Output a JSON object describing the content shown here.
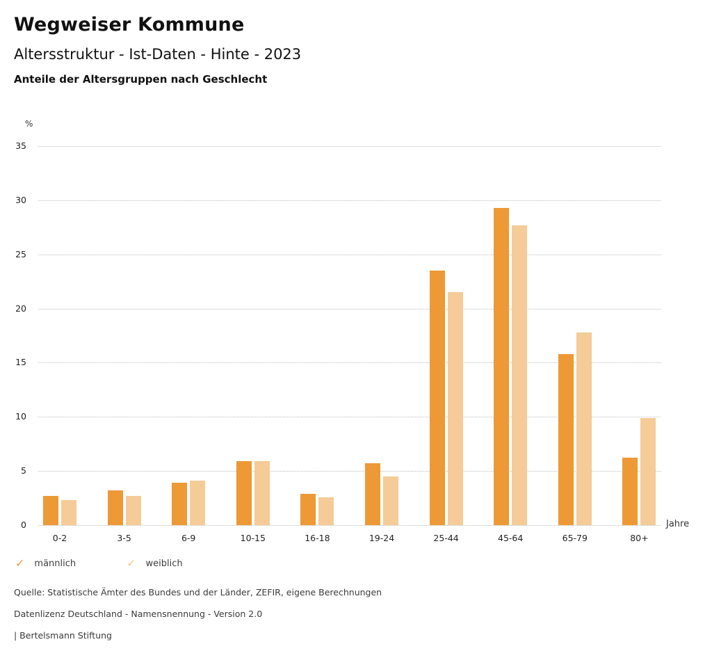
{
  "header": {
    "title": "Wegweiser Kommune",
    "subtitle": "Altersstruktur - Ist-Daten - Hinte - 2023",
    "description": "Anteile der Altersgruppen nach Geschlecht"
  },
  "chart_data": {
    "type": "bar",
    "title": "Anteile der Altersgruppen nach Geschlecht",
    "categories": [
      "0-2",
      "3-5",
      "6-9",
      "10-15",
      "16-18",
      "19-24",
      "25-44",
      "45-64",
      "65-79",
      "80+"
    ],
    "series": [
      {
        "name": "männlich",
        "color": "#ED9936",
        "values": [
          2.7,
          3.2,
          3.9,
          5.9,
          2.9,
          5.7,
          23.5,
          29.3,
          15.8,
          6.2
        ]
      },
      {
        "name": "weiblich",
        "color": "#F5CB97",
        "values": [
          2.3,
          2.7,
          4.1,
          5.9,
          2.6,
          4.5,
          21.5,
          27.7,
          17.8,
          9.9
        ]
      }
    ],
    "xlabel": "Jahre",
    "ylabel": "%",
    "ylim": [
      0,
      35
    ],
    "ytick_step": 5,
    "grid": "horizontal-dotted",
    "legend_position": "bottom-left"
  },
  "footer": {
    "source": "Quelle: Statistische Ämter des Bundes und der Länder, ZEFIR, eigene Berechnungen",
    "license": "Datenlizenz Deutschland - Namensnennung - Version 2.0",
    "attribution": "| Bertelsmann Stiftung"
  }
}
